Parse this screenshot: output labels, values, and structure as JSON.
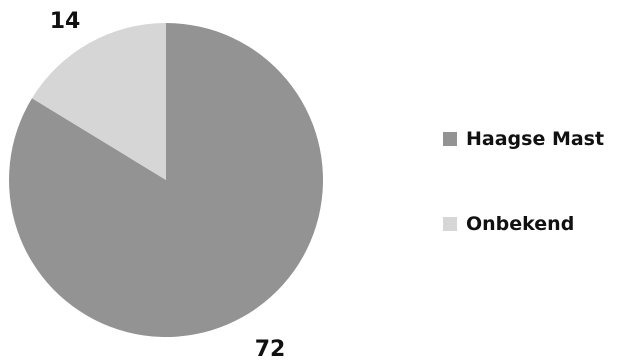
{
  "chart_data": {
    "type": "pie",
    "series": [
      {
        "name": "Haagse Mast",
        "value": 72,
        "color": "#939393"
      },
      {
        "name": "Onbekend",
        "value": 14,
        "color": "#d6d6d6"
      }
    ],
    "data_labels": [
      "72",
      "14"
    ],
    "legend": {
      "placement": "right",
      "entries": [
        "Haagse Mast",
        "Onbekend"
      ]
    },
    "start_angle_deg": 0,
    "direction": "clockwise",
    "title": ""
  }
}
